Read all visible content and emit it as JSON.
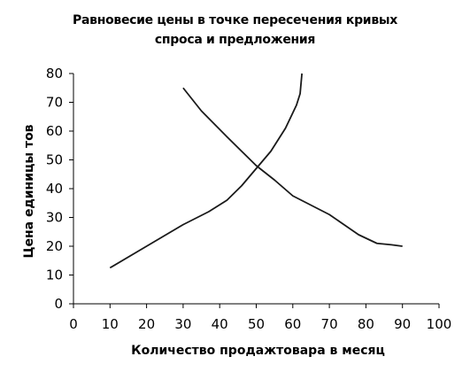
{
  "chart_data": {
    "type": "line",
    "title_line1": "Равновесие цены в точке пересечения кривых",
    "title_line2": "спроса и предложения",
    "xlabel": "Количество продажтовара в месяц",
    "ylabel": "Цена единицы тов",
    "xlim": [
      0,
      100
    ],
    "ylim": [
      0,
      80
    ],
    "x_ticks": [
      0,
      10,
      20,
      30,
      40,
      50,
      60,
      70,
      80,
      90,
      100
    ],
    "y_ticks": [
      0,
      10,
      20,
      30,
      40,
      50,
      60,
      70,
      80
    ],
    "grid": false,
    "legend": "none",
    "line_color": "#1a1a1a",
    "series": [
      {
        "points": [
          [
            10,
            12.5
          ],
          [
            20,
            20
          ],
          [
            30,
            27.5
          ],
          [
            37,
            32
          ],
          [
            42,
            36
          ],
          [
            46,
            41
          ],
          [
            50,
            47
          ],
          [
            54,
            53
          ],
          [
            58,
            61
          ],
          [
            61,
            69
          ],
          [
            62,
            73
          ],
          [
            62.5,
            80
          ]
        ]
      },
      {
        "points": [
          [
            30,
            75
          ],
          [
            35,
            67
          ],
          [
            42,
            58
          ],
          [
            50,
            48
          ],
          [
            55,
            43
          ],
          [
            60,
            37.5
          ],
          [
            70,
            31
          ],
          [
            78,
            24
          ],
          [
            83,
            21
          ],
          [
            87,
            20.5
          ],
          [
            90,
            20
          ]
        ]
      }
    ]
  }
}
